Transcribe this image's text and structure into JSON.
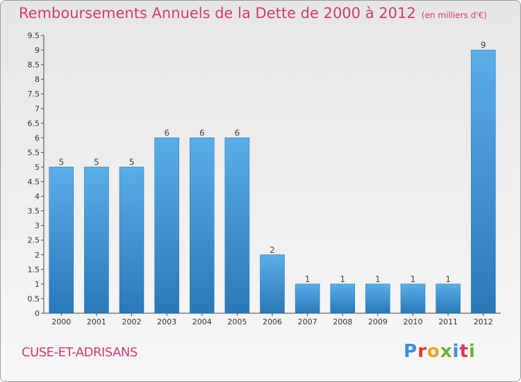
{
  "header": {
    "title": "Remboursements Annuels de la Dette de 2000 à 2012",
    "unit": "(en milliers d'€)"
  },
  "footer": {
    "commune": "CUSE-ET-ADRISANS",
    "logo": "Proxiti"
  },
  "colors": {
    "title": "#d63a6a",
    "bar_light": "#5aaee8",
    "bar_dark": "#2a78b8",
    "logo_letters": [
      "#3c8fd8",
      "#e8352e",
      "#f0a22a",
      "#6bb32e",
      "#3c8fd8",
      "#d63a6a",
      "#6bb32e"
    ]
  },
  "chart_data": {
    "type": "bar",
    "categories": [
      "2000",
      "2001",
      "2002",
      "2003",
      "2004",
      "2005",
      "2006",
      "2007",
      "2008",
      "2009",
      "2010",
      "2011",
      "2012"
    ],
    "values": [
      5,
      5,
      5,
      6,
      6,
      6,
      2,
      1,
      1,
      1,
      1,
      1,
      9
    ],
    "data_labels": [
      "5",
      "5",
      "5",
      "6",
      "6",
      "6",
      "2",
      "1",
      "1",
      "1",
      "1",
      "1",
      "9"
    ],
    "ylim": [
      0,
      9.5
    ],
    "yticks": [
      0,
      0.5,
      1,
      1.5,
      2,
      2.5,
      3,
      3.5,
      4,
      4.5,
      5,
      5.5,
      6,
      6.5,
      7,
      7.5,
      8,
      8.5,
      9,
      9.5
    ],
    "ytick_labels": [
      "0",
      "0.5",
      "1",
      "1.5",
      "2",
      "2.5",
      "3",
      "3.5",
      "4",
      "4.5",
      "5",
      "5.5",
      "6",
      "6.5",
      "7",
      "7.5",
      "8",
      "8.5",
      "9",
      "9.5"
    ],
    "grid": false,
    "legend": "none"
  }
}
